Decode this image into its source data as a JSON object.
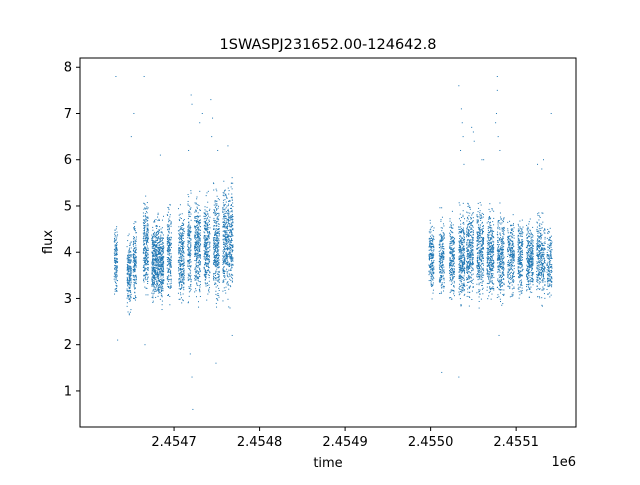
{
  "chart_data": {
    "type": "scatter",
    "title": "1SWASPJ231652.00-124642.8",
    "xlabel": "time",
    "ylabel": "flux",
    "x_offset_label": "1e6",
    "x_ticks": [
      2.4547,
      2.4548,
      2.4549,
      2.455,
      2.4551
    ],
    "x_tick_labels": [
      "2.4547",
      "2.4548",
      "2.4549",
      "2.4550",
      "2.4551"
    ],
    "y_ticks": [
      1,
      2,
      3,
      4,
      5,
      6,
      7,
      8
    ],
    "y_tick_labels": [
      "1",
      "2",
      "3",
      "4",
      "5",
      "6",
      "7",
      "8"
    ],
    "xlim": [
      2.45459,
      2.45517
    ],
    "ylim": [
      0.22,
      8.2
    ],
    "grid": false,
    "marker_color": "#1f77b4",
    "clusters": [
      {
        "x_start": 2.45463,
        "x_end": 2.454634,
        "y_low": 2.85,
        "y_high": 4.8,
        "n": 140
      },
      {
        "x_start": 2.454645,
        "x_end": 2.45465,
        "y_low": 2.5,
        "y_high": 4.6,
        "n": 200
      },
      {
        "x_start": 2.454652,
        "x_end": 2.454656,
        "y_low": 2.7,
        "y_high": 4.9,
        "n": 160
      },
      {
        "x_start": 2.454664,
        "x_end": 2.45467,
        "y_low": 2.7,
        "y_high": 5.4,
        "n": 260
      },
      {
        "x_start": 2.454674,
        "x_end": 2.454688,
        "y_low": 2.6,
        "y_high": 5.0,
        "n": 700
      },
      {
        "x_start": 2.454692,
        "x_end": 2.454697,
        "y_low": 2.7,
        "y_high": 5.3,
        "n": 200
      },
      {
        "x_start": 2.454705,
        "x_end": 2.454712,
        "y_low": 2.6,
        "y_high": 5.2,
        "n": 280
      },
      {
        "x_start": 2.454716,
        "x_end": 2.45472,
        "y_low": 2.6,
        "y_high": 5.6,
        "n": 180
      },
      {
        "x_start": 2.454724,
        "x_end": 2.454731,
        "y_low": 2.6,
        "y_high": 5.6,
        "n": 320
      },
      {
        "x_start": 2.454735,
        "x_end": 2.454742,
        "y_low": 2.7,
        "y_high": 5.5,
        "n": 300
      },
      {
        "x_start": 2.454746,
        "x_end": 2.454753,
        "y_low": 2.6,
        "y_high": 5.7,
        "n": 320
      },
      {
        "x_start": 2.454757,
        "x_end": 2.454769,
        "y_low": 2.7,
        "y_high": 5.8,
        "n": 520
      },
      {
        "x_start": 2.454998,
        "x_end": 2.455004,
        "y_low": 2.8,
        "y_high": 5.0,
        "n": 200
      },
      {
        "x_start": 2.45501,
        "x_end": 2.455016,
        "y_low": 2.8,
        "y_high": 5.0,
        "n": 200
      },
      {
        "x_start": 2.455022,
        "x_end": 2.455028,
        "y_low": 2.7,
        "y_high": 5.1,
        "n": 220
      },
      {
        "x_start": 2.455033,
        "x_end": 2.45504,
        "y_low": 2.6,
        "y_high": 5.2,
        "n": 320
      },
      {
        "x_start": 2.455042,
        "x_end": 2.45505,
        "y_low": 2.7,
        "y_high": 5.3,
        "n": 330
      },
      {
        "x_start": 2.455054,
        "x_end": 2.455062,
        "y_low": 2.7,
        "y_high": 5.4,
        "n": 320
      },
      {
        "x_start": 2.455066,
        "x_end": 2.455074,
        "y_low": 2.7,
        "y_high": 5.2,
        "n": 320
      },
      {
        "x_start": 2.455078,
        "x_end": 2.455086,
        "y_low": 2.6,
        "y_high": 5.2,
        "n": 300
      },
      {
        "x_start": 2.45509,
        "x_end": 2.455098,
        "y_low": 2.8,
        "y_high": 5.0,
        "n": 250
      },
      {
        "x_start": 2.455102,
        "x_end": 2.455108,
        "y_low": 2.8,
        "y_high": 5.0,
        "n": 220
      },
      {
        "x_start": 2.455112,
        "x_end": 2.45512,
        "y_low": 2.8,
        "y_high": 4.9,
        "n": 300
      },
      {
        "x_start": 2.455124,
        "x_end": 2.455134,
        "y_low": 2.7,
        "y_high": 5.1,
        "n": 330
      },
      {
        "x_start": 2.455136,
        "x_end": 2.455142,
        "y_low": 2.8,
        "y_high": 4.8,
        "n": 160
      }
    ],
    "outliers": [
      {
        "x": 2.454632,
        "y": 7.8
      },
      {
        "x": 2.454634,
        "y": 2.1
      },
      {
        "x": 2.45465,
        "y": 6.5
      },
      {
        "x": 2.454653,
        "y": 7.0
      },
      {
        "x": 2.454665,
        "y": 7.8
      },
      {
        "x": 2.454666,
        "y": 2.0
      },
      {
        "x": 2.454684,
        "y": 6.1
      },
      {
        "x": 2.454717,
        "y": 6.2
      },
      {
        "x": 2.45472,
        "y": 7.4
      },
      {
        "x": 2.454721,
        "y": 7.2
      },
      {
        "x": 2.454719,
        "y": 1.8
      },
      {
        "x": 2.454721,
        "y": 1.3
      },
      {
        "x": 2.454722,
        "y": 0.6
      },
      {
        "x": 2.45473,
        "y": 6.8
      },
      {
        "x": 2.454733,
        "y": 7.0
      },
      {
        "x": 2.454743,
        "y": 7.3
      },
      {
        "x": 2.454744,
        "y": 6.5
      },
      {
        "x": 2.454745,
        "y": 6.9
      },
      {
        "x": 2.454749,
        "y": 1.6
      },
      {
        "x": 2.454751,
        "y": 6.2
      },
      {
        "x": 2.454763,
        "y": 6.3
      },
      {
        "x": 2.454768,
        "y": 2.2
      },
      {
        "x": 2.455013,
        "y": 1.4
      },
      {
        "x": 2.455033,
        "y": 1.3
      },
      {
        "x": 2.455033,
        "y": 7.6
      },
      {
        "x": 2.455036,
        "y": 7.1
      },
      {
        "x": 2.455037,
        "y": 6.8
      },
      {
        "x": 2.455038,
        "y": 6.5
      },
      {
        "x": 2.455035,
        "y": 6.2
      },
      {
        "x": 2.455039,
        "y": 5.9
      },
      {
        "x": 2.455048,
        "y": 6.7
      },
      {
        "x": 2.45505,
        "y": 6.6
      },
      {
        "x": 2.455051,
        "y": 6.4
      },
      {
        "x": 2.45506,
        "y": 6.0
      },
      {
        "x": 2.455062,
        "y": 6.0
      },
      {
        "x": 2.455078,
        "y": 7.8
      },
      {
        "x": 2.455078,
        "y": 7.5
      },
      {
        "x": 2.455077,
        "y": 7.0
      },
      {
        "x": 2.455076,
        "y": 6.8
      },
      {
        "x": 2.455079,
        "y": 6.5
      },
      {
        "x": 2.45508,
        "y": 2.2
      },
      {
        "x": 2.455081,
        "y": 6.2
      },
      {
        "x": 2.455125,
        "y": 5.9
      },
      {
        "x": 2.45513,
        "y": 5.8
      },
      {
        "x": 2.455141,
        "y": 7.0
      },
      {
        "x": 2.455132,
        "y": 6.0
      }
    ]
  }
}
